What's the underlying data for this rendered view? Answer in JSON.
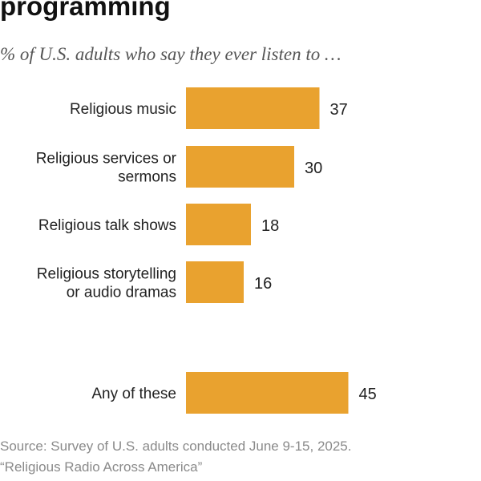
{
  "header": {
    "title": "programming",
    "subtitle": "% of U.S. adults who say they ever listen to …"
  },
  "chart_data": {
    "type": "bar",
    "orientation": "horizontal",
    "title": "programming",
    "subtitle": "% of U.S. adults who say they ever listen to …",
    "xlabel": "",
    "ylabel": "",
    "categories": [
      [
        "Religious music"
      ],
      [
        "Religious services or",
        "sermons"
      ],
      [
        "Religious talk shows"
      ],
      [
        "Religious storytelling",
        "or audio dramas"
      ],
      [
        "Any of these"
      ]
    ],
    "values": [
      37,
      30,
      18,
      16,
      45
    ],
    "xlim": [
      0,
      100
    ],
    "grid": false,
    "legend": "none",
    "bar_color": "#E9A22F"
  },
  "footer": {
    "source": "Source: Survey of U.S. adults conducted June 9-15, 2025.",
    "report": "“Religious Radio Across America”"
  }
}
